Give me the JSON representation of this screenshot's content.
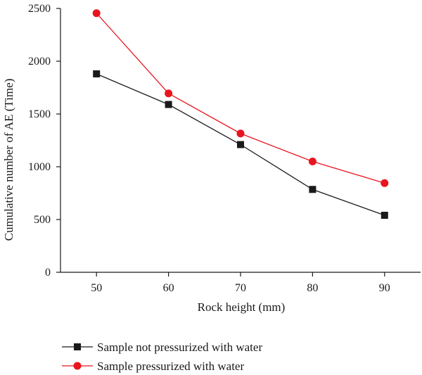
{
  "chart_data": {
    "type": "line",
    "xlabel": "Rock height (mm)",
    "ylabel": "Cumulative number of AE (Time)",
    "x": [
      50,
      60,
      70,
      80,
      90
    ],
    "xlim": [
      45,
      95
    ],
    "ylim": [
      0,
      2500
    ],
    "xticks": [
      50,
      60,
      70,
      80,
      90
    ],
    "yticks": [
      0,
      500,
      1000,
      1500,
      2000,
      2500
    ],
    "grid": false,
    "legend_position": "bottom",
    "series": [
      {
        "name": "Sample not pressurized with water",
        "values": [
          1880,
          1590,
          1210,
          785,
          540
        ],
        "color": "#1a1a1a",
        "marker": "square"
      },
      {
        "name": "Sample pressurized with water",
        "values": [
          2455,
          1695,
          1315,
          1050,
          845
        ],
        "color": "#e8141e",
        "marker": "circle"
      }
    ]
  }
}
